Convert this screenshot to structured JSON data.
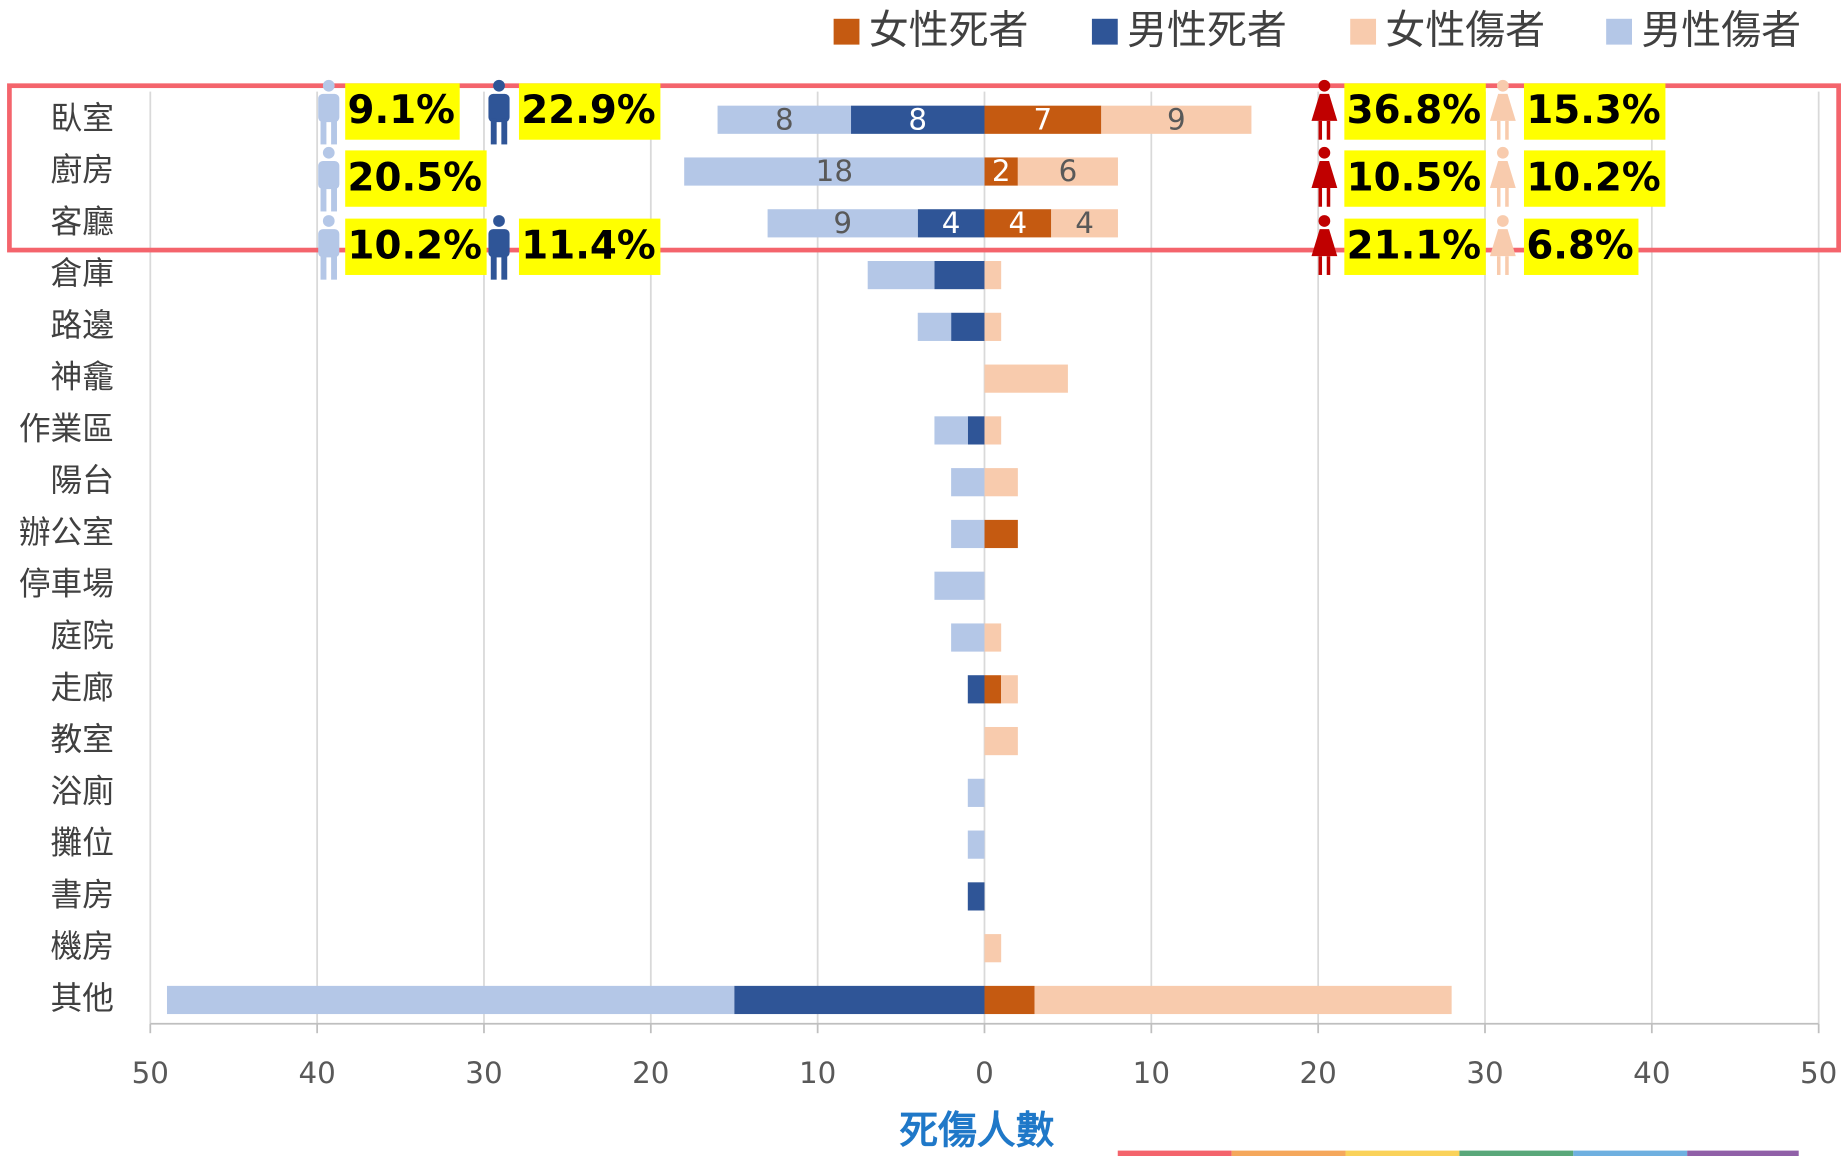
{
  "chart_data": {
    "type": "diverging_stacked_bar",
    "x_label": "死傷人數",
    "categories": [
      "臥室",
      "廚房",
      "客廳",
      "倉庫",
      "路邊",
      "神龕",
      "作業區",
      "陽台",
      "辦公室",
      "停車場",
      "庭院",
      "走廊",
      "教室",
      "浴廁",
      "攤位",
      "書房",
      "機房",
      "其他"
    ],
    "series": [
      {
        "name": "女性死者",
        "color": "#c55a11",
        "values": [
          7,
          2,
          4,
          0,
          0,
          0,
          0,
          0,
          2,
          0,
          0,
          1,
          0,
          0,
          0,
          0,
          0,
          3
        ],
        "value_labels": [
          "7",
          "2",
          "4",
          null,
          null,
          null,
          null,
          null,
          null,
          null,
          null,
          null,
          null,
          null,
          null,
          null,
          null,
          null
        ],
        "share_labels": [
          "36.8%",
          "10.5%",
          "21.1%"
        ]
      },
      {
        "name": "男性死者",
        "color": "#2f5597",
        "values": [
          -8,
          0,
          -4,
          -3,
          -2,
          0,
          -1,
          0,
          0,
          0,
          0,
          -1,
          0,
          0,
          0,
          -1,
          0,
          -15
        ],
        "value_labels": [
          "8",
          null,
          "4",
          null,
          null,
          null,
          null,
          null,
          null,
          null,
          null,
          null,
          null,
          null,
          null,
          null,
          null,
          null
        ],
        "share_labels": [
          "22.9%",
          null,
          "11.4%"
        ]
      },
      {
        "name": "女性傷者",
        "color": "#f8cbad",
        "values": [
          9,
          6,
          4,
          1,
          1,
          5,
          1,
          2,
          0,
          0,
          1,
          1,
          2,
          0,
          0,
          0,
          1,
          25
        ],
        "value_labels": [
          "9",
          "6",
          "4",
          null,
          null,
          null,
          null,
          null,
          null,
          null,
          null,
          null,
          null,
          null,
          null,
          null,
          null,
          null
        ],
        "share_labels": [
          "15.3%",
          "10.2%",
          "6.8%"
        ]
      },
      {
        "name": "男性傷者",
        "color": "#b4c7e7",
        "values": [
          -8,
          -18,
          -9,
          -4,
          -2,
          0,
          -2,
          -2,
          -2,
          -3,
          -2,
          0,
          0,
          -1,
          -1,
          0,
          0,
          -34
        ],
        "value_labels": [
          "8",
          "18",
          "9",
          null,
          null,
          null,
          null,
          null,
          null,
          null,
          null,
          null,
          null,
          null,
          null,
          null,
          null,
          null
        ],
        "share_labels": [
          "9.1%",
          "20.5%",
          "10.2%"
        ]
      }
    ],
    "xlim": [
      -50,
      50
    ],
    "xticks": [
      {
        "value": -50,
        "label": "50"
      },
      {
        "value": -40,
        "label": "40"
      },
      {
        "value": -30,
        "label": "30"
      },
      {
        "value": -20,
        "label": "20"
      },
      {
        "value": -10,
        "label": "10"
      },
      0,
      10,
      20,
      30,
      40,
      50
    ],
    "grid": true,
    "legend": "top-right"
  }
}
